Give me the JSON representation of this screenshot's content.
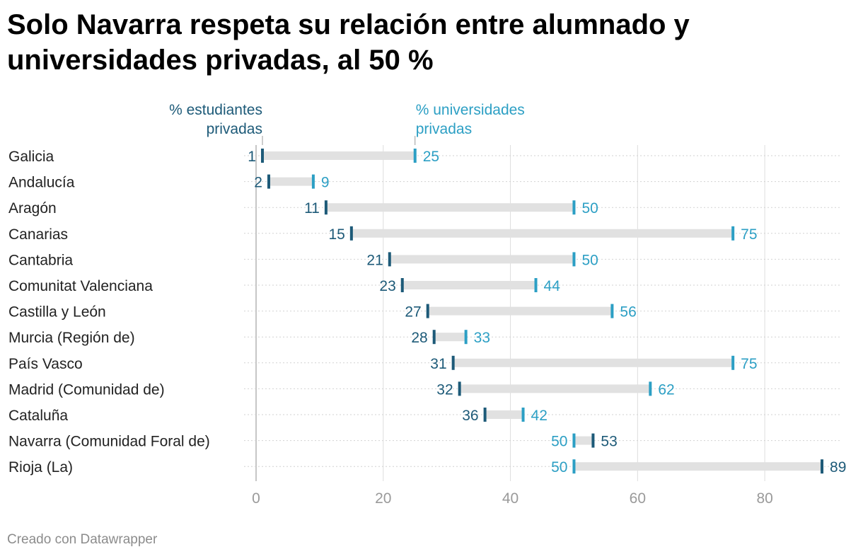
{
  "title": "Solo Navarra respeta su relación entre alumnado y universidades privadas, al 50 %",
  "footer": "Creado con Datawrapper",
  "colors": {
    "students": "#1d5a78",
    "universities": "#2c9fc4",
    "range": "#e1e1e1",
    "grid": "#dddddd",
    "axis_text": "#9a9a9a",
    "label_text": "#222222"
  },
  "chart_data": {
    "type": "range",
    "xlim": [
      0,
      92
    ],
    "xticks": [
      0,
      20,
      40,
      60,
      80
    ],
    "series": [
      {
        "name": "% estudiantes privadas",
        "legend_lines": [
          "% estudiantes",
          "privadas"
        ]
      },
      {
        "name": "% universidades privadas",
        "legend_lines": [
          "% universidades",
          "privadas"
        ]
      }
    ],
    "categories": [
      "Galicia",
      "Andalucía",
      "Aragón",
      "Canarias",
      "Cantabria",
      "Comunitat Valenciana",
      "Castilla y León",
      "Murcia (Región de)",
      "País Vasco",
      "Madrid (Comunidad de)",
      "Cataluña",
      "Navarra (Comunidad Foral de)",
      "Rioja (La)"
    ],
    "students": [
      1,
      2,
      11,
      15,
      21,
      23,
      27,
      28,
      31,
      32,
      36,
      53,
      89
    ],
    "universities": [
      25,
      9,
      50,
      75,
      50,
      44,
      56,
      33,
      75,
      62,
      42,
      50,
      50
    ]
  }
}
